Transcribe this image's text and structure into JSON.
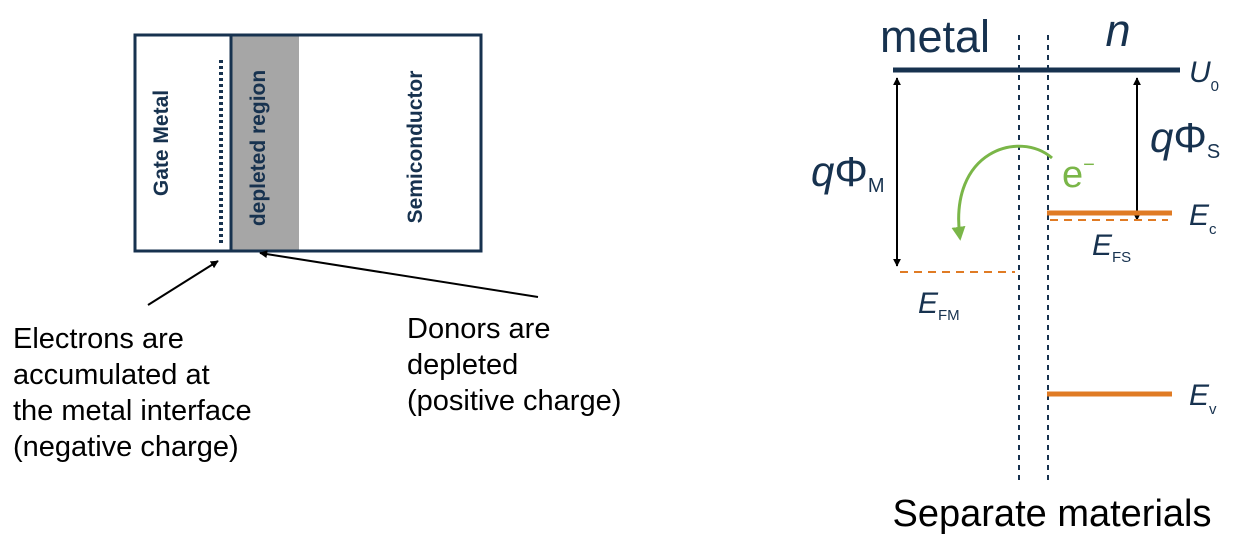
{
  "structure": {
    "gate_metal_label": "Gate Metal",
    "depleted_region_label": "depleted region",
    "semiconductor_label": "Semiconductor",
    "electrons_note": "Electrons are\naccumulated at\nthe metal interface\n(negative charge)",
    "donors_note": "Donors are\ndepleted\n(positive charge)"
  },
  "band_diagram": {
    "metal_label": "metal",
    "n_label": "n",
    "vacuum_level": {
      "symbol": "U",
      "subscript": "0"
    },
    "metal_work_function": {
      "prefix": "q",
      "symbol": "Φ",
      "subscript": "M"
    },
    "semiconductor_work_function": {
      "prefix": "q",
      "symbol": "Φ",
      "subscript": "S"
    },
    "electron": {
      "symbol": "e",
      "superscript": "−"
    },
    "conduction_band": {
      "symbol": "E",
      "subscript": "c"
    },
    "metal_fermi_level": {
      "symbol": "E",
      "subscript": "FM"
    },
    "semiconductor_fermi_level": {
      "symbol": "E",
      "subscript": "FS"
    },
    "valence_band": {
      "symbol": "E",
      "subscript": "v"
    },
    "caption": "Separate materials"
  },
  "colors": {
    "navy": "#17324f",
    "gray_fill": "#a6a6a6",
    "orange": "#e07b24",
    "green": "#7ab648",
    "text": "#000000"
  }
}
